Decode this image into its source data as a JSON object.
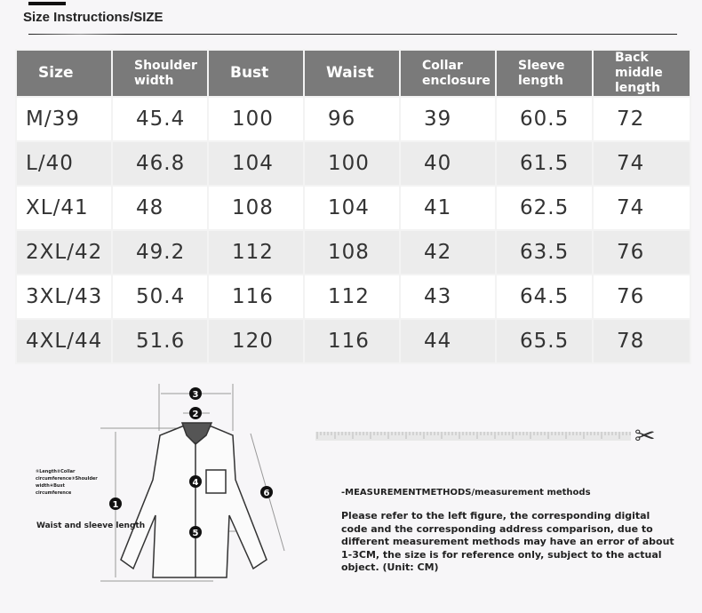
{
  "header": {
    "title": "Size Instructions/SIZE"
  },
  "table": {
    "columns": [
      "Size",
      "Shoulder width",
      "Bust",
      "Waist",
      "Collar enclosure",
      "Sleeve length",
      "Back middle length"
    ],
    "rows": [
      [
        "M/39",
        "45.4",
        "100",
        "96",
        "39",
        "60.5",
        "72"
      ],
      [
        "L/40",
        "46.8",
        "104",
        "100",
        "40",
        "61.5",
        "74"
      ],
      [
        "XL/41",
        "48",
        "108",
        "104",
        "41",
        "62.5",
        "74"
      ],
      [
        "2XL/42",
        "49.2",
        "112",
        "108",
        "42",
        "63.5",
        "76"
      ],
      [
        "3XL/43",
        "50.4",
        "116",
        "112",
        "43",
        "64.5",
        "76"
      ],
      [
        "4XL/44",
        "51.6",
        "120",
        "116",
        "44",
        "65.5",
        "78"
      ]
    ]
  },
  "diagram": {
    "legend": "①Length②Collar circumference③Shoulder width④Bust circumference",
    "waist_label": "Waist and sleeve length",
    "markers": [
      "1",
      "2",
      "3",
      "4",
      "5",
      "6"
    ]
  },
  "measurement": {
    "title": "-MEASUREMENTMETHODS/measurement methods",
    "text": "Please refer to the left figure, the corresponding digital code and the corresponding address comparison, due to different measurement methods may have an error of about 1-3CM, the size is for reference only, subject to the actual object. (Unit: CM)"
  }
}
